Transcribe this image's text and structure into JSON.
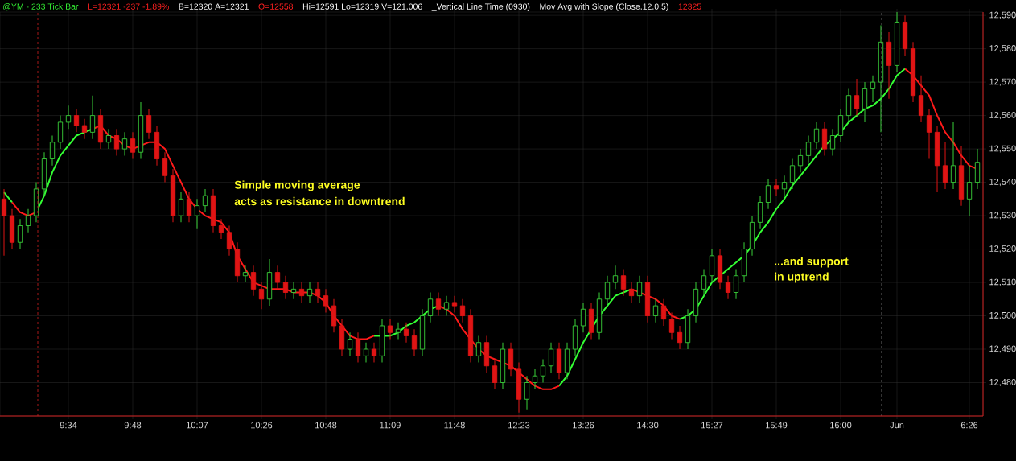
{
  "chart_data": {
    "type": "candlestick",
    "categories": [
      null,
      null,
      null,
      null,
      null,
      null,
      null,
      null,
      "9:34",
      null,
      null,
      null,
      null,
      null,
      null,
      null,
      "9:48",
      null,
      null,
      null,
      null,
      null,
      null,
      null,
      "10:07",
      null,
      null,
      null,
      null,
      null,
      null,
      null,
      "10:26",
      null,
      null,
      null,
      null,
      null,
      null,
      null,
      "10:48",
      null,
      null,
      null,
      null,
      null,
      null,
      null,
      "11:09",
      null,
      null,
      null,
      null,
      null,
      null,
      null,
      "11:48",
      null,
      null,
      null,
      null,
      null,
      null,
      null,
      "12:23",
      null,
      null,
      null,
      null,
      null,
      null,
      null,
      "13:26",
      null,
      null,
      null,
      null,
      null,
      null,
      null,
      "14:30",
      null,
      null,
      null,
      null,
      null,
      null,
      null,
      "15:27",
      null,
      null,
      null,
      null,
      null,
      null,
      null,
      "15:49",
      null,
      null,
      null,
      null,
      null,
      null,
      null,
      "16:00",
      null,
      null,
      null,
      null,
      null,
      null,
      "Jun",
      null,
      null,
      null,
      null,
      null,
      null,
      null,
      null,
      "6:26",
      null
    ],
    "ohlc": [
      [
        12535,
        12538,
        12518,
        12530
      ],
      [
        12530,
        12532,
        12520,
        12522
      ],
      [
        12522,
        12529,
        12520,
        12527
      ],
      [
        12527,
        12532,
        12525,
        12530
      ],
      [
        12530,
        12540,
        12528,
        12538
      ],
      [
        12538,
        12549,
        12536,
        12547
      ],
      [
        12547,
        12554,
        12545,
        12552
      ],
      [
        12552,
        12560,
        12550,
        12558
      ],
      [
        12558,
        12563,
        12556,
        12560
      ],
      [
        12560,
        12562,
        12555,
        12557
      ],
      [
        12557,
        12559,
        12553,
        12555
      ],
      [
        12555,
        12566,
        12553,
        12560
      ],
      [
        12560,
        12562,
        12550,
        12552
      ],
      [
        12552,
        12556,
        12550,
        12554
      ],
      [
        12554,
        12556,
        12548,
        12550
      ],
      [
        12550,
        12555,
        12548,
        12553
      ],
      [
        12553,
        12555,
        12547,
        12549
      ],
      [
        12549,
        12564,
        12547,
        12560
      ],
      [
        12560,
        12562,
        12553,
        12555
      ],
      [
        12555,
        12557,
        12545,
        12547
      ],
      [
        12547,
        12549,
        12540,
        12542
      ],
      [
        12542,
        12544,
        12528,
        12530
      ],
      [
        12530,
        12537,
        12528,
        12535
      ],
      [
        12535,
        12537,
        12528,
        12530
      ],
      [
        12530,
        12535,
        12526,
        12533
      ],
      [
        12533,
        12538,
        12531,
        12536
      ],
      [
        12536,
        12538,
        12525,
        12527
      ],
      [
        12527,
        12529,
        12523,
        12525
      ],
      [
        12525,
        12527,
        12518,
        12520
      ],
      [
        12520,
        12522,
        12510,
        12512
      ],
      [
        12512,
        12515,
        12510,
        12513
      ],
      [
        12513,
        12515,
        12506,
        12508
      ],
      [
        12508,
        12510,
        12502,
        12505
      ],
      [
        12505,
        12517,
        12503,
        12513
      ],
      [
        12513,
        12515,
        12508,
        12510
      ],
      [
        12510,
        12512,
        12505,
        12507
      ],
      [
        12507,
        12510,
        12505,
        12508
      ],
      [
        12508,
        12510,
        12504,
        12506
      ],
      [
        12506,
        12510,
        12504,
        12508
      ],
      [
        12508,
        12510,
        12504,
        12506
      ],
      [
        12506,
        12508,
        12501,
        12503
      ],
      [
        12503,
        12505,
        12495,
        12497
      ],
      [
        12497,
        12499,
        12488,
        12490
      ],
      [
        12490,
        12495,
        12488,
        12493
      ],
      [
        12493,
        12495,
        12486,
        12488
      ],
      [
        12488,
        12492,
        12486,
        12490
      ],
      [
        12490,
        12492,
        12486,
        12488
      ],
      [
        12488,
        12499,
        12486,
        12497
      ],
      [
        12497,
        12499,
        12493,
        12495
      ],
      [
        12495,
        12498,
        12493,
        12496
      ],
      [
        12496,
        12498,
        12492,
        12494
      ],
      [
        12494,
        12496,
        12488,
        12490
      ],
      [
        12490,
        12502,
        12488,
        12500
      ],
      [
        12500,
        12507,
        12498,
        12505
      ],
      [
        12505,
        12507,
        12500,
        12502
      ],
      [
        12502,
        12506,
        12500,
        12504
      ],
      [
        12504,
        12506,
        12501,
        12503
      ],
      [
        12503,
        12505,
        12498,
        12500
      ],
      [
        12500,
        12502,
        12486,
        12488
      ],
      [
        12488,
        12494,
        12486,
        12492
      ],
      [
        12492,
        12494,
        12483,
        12485
      ],
      [
        12485,
        12487,
        12478,
        12480
      ],
      [
        12480,
        12492,
        12478,
        12490
      ],
      [
        12490,
        12492,
        12482,
        12484
      ],
      [
        12484,
        12486,
        12471,
        12475
      ],
      [
        12475,
        12482,
        12472,
        12480
      ],
      [
        12480,
        12484,
        12478,
        12482
      ],
      [
        12482,
        12487,
        12480,
        12485
      ],
      [
        12485,
        12492,
        12483,
        12490
      ],
      [
        12490,
        12492,
        12481,
        12483
      ],
      [
        12483,
        12492,
        12481,
        12490
      ],
      [
        12490,
        12499,
        12488,
        12497
      ],
      [
        12497,
        12504,
        12495,
        12502
      ],
      [
        12502,
        12504,
        12493,
        12495
      ],
      [
        12495,
        12507,
        12493,
        12505
      ],
      [
        12505,
        12512,
        12503,
        12510
      ],
      [
        12510,
        12515,
        12508,
        12512
      ],
      [
        12512,
        12514,
        12506,
        12508
      ],
      [
        12508,
        12510,
        12504,
        12506
      ],
      [
        12506,
        12512,
        12504,
        12510
      ],
      [
        12510,
        12512,
        12498,
        12500
      ],
      [
        12500,
        12505,
        12498,
        12503
      ],
      [
        12503,
        12505,
        12497,
        12499
      ],
      [
        12499,
        12501,
        12493,
        12495
      ],
      [
        12495,
        12497,
        12490,
        12492
      ],
      [
        12492,
        12502,
        12490,
        12500
      ],
      [
        12500,
        12510,
        12498,
        12508
      ],
      [
        12508,
        12514,
        12506,
        12512
      ],
      [
        12512,
        12520,
        12510,
        12518
      ],
      [
        12518,
        12520,
        12508,
        12510
      ],
      [
        12510,
        12512,
        12505,
        12507
      ],
      [
        12507,
        12514,
        12505,
        12512
      ],
      [
        12512,
        12522,
        12510,
        12520
      ],
      [
        12520,
        12530,
        12518,
        12528
      ],
      [
        12528,
        12536,
        12526,
        12534
      ],
      [
        12534,
        12541,
        12532,
        12539
      ],
      [
        12539,
        12541,
        12536,
        12538
      ],
      [
        12538,
        12542,
        12536,
        12540
      ],
      [
        12540,
        12547,
        12538,
        12545
      ],
      [
        12545,
        12550,
        12543,
        12548
      ],
      [
        12548,
        12554,
        12546,
        12552
      ],
      [
        12552,
        12558,
        12550,
        12556
      ],
      [
        12556,
        12558,
        12548,
        12550
      ],
      [
        12550,
        12556,
        12548,
        12554
      ],
      [
        12554,
        12562,
        12552,
        12560
      ],
      [
        12560,
        12568,
        12558,
        12566
      ],
      [
        12566,
        12571,
        12560,
        12562
      ],
      [
        12562,
        12570,
        12558,
        12568
      ],
      [
        12568,
        12572,
        12564,
        12570
      ],
      [
        12570,
        12587,
        12555,
        12582
      ],
      [
        12582,
        12585,
        12565,
        12575
      ],
      [
        12575,
        12591,
        12573,
        12588
      ],
      [
        12588,
        12590,
        12578,
        12580
      ],
      [
        12580,
        12582,
        12564,
        12566
      ],
      [
        12566,
        12572,
        12558,
        12560
      ],
      [
        12560,
        12562,
        12547,
        12555
      ],
      [
        12555,
        12557,
        12537,
        12545
      ],
      [
        12545,
        12552,
        12538,
        12540
      ],
      [
        12540,
        12558,
        12538,
        12545
      ],
      [
        12545,
        12551,
        12533,
        12535
      ],
      [
        12535,
        12545,
        12530,
        12540
      ],
      [
        12540,
        12550,
        12538,
        12546
      ]
    ],
    "colors": [
      "#e01414",
      "#e01414",
      "#3ad13a",
      "#3ad13a",
      "#3ad13a",
      "#3ad13a",
      "#3ad13a",
      "#3ad13a",
      "#3ad13a",
      "#e01414",
      "#e01414",
      "#3ad13a",
      "#e01414",
      "#3ad13a",
      "#e01414",
      "#3ad13a",
      "#e01414",
      "#3ad13a",
      "#e01414",
      "#e01414",
      "#e01414",
      "#e01414",
      "#3ad13a",
      "#e01414",
      "#3ad13a",
      "#3ad13a",
      "#e01414",
      "#e01414",
      "#e01414",
      "#e01414",
      "#3ad13a",
      "#e01414",
      "#e01414",
      "#3ad13a",
      "#e01414",
      "#e01414",
      "#3ad13a",
      "#e01414",
      "#3ad13a",
      "#e01414",
      "#e01414",
      "#e01414",
      "#e01414",
      "#3ad13a",
      "#e01414",
      "#3ad13a",
      "#e01414",
      "#3ad13a",
      "#e01414",
      "#3ad13a",
      "#e01414",
      "#e01414",
      "#3ad13a",
      "#3ad13a",
      "#e01414",
      "#3ad13a",
      "#e01414",
      "#e01414",
      "#e01414",
      "#3ad13a",
      "#e01414",
      "#e01414",
      "#3ad13a",
      "#e01414",
      "#e01414",
      "#3ad13a",
      "#3ad13a",
      "#3ad13a",
      "#3ad13a",
      "#e01414",
      "#3ad13a",
      "#3ad13a",
      "#3ad13a",
      "#e01414",
      "#3ad13a",
      "#3ad13a",
      "#3ad13a",
      "#e01414",
      "#e01414",
      "#3ad13a",
      "#e01414",
      "#3ad13a",
      "#e01414",
      "#e01414",
      "#e01414",
      "#3ad13a",
      "#3ad13a",
      "#3ad13a",
      "#3ad13a",
      "#e01414",
      "#e01414",
      "#3ad13a",
      "#3ad13a",
      "#3ad13a",
      "#3ad13a",
      "#3ad13a",
      "#e01414",
      "#3ad13a",
      "#3ad13a",
      "#3ad13a",
      "#3ad13a",
      "#3ad13a",
      "#e01414",
      "#3ad13a",
      "#3ad13a",
      "#3ad13a",
      "#e01414",
      "#3ad13a",
      "#3ad13a",
      "#3ad13a",
      "#e01414",
      "#3ad13a",
      "#e01414",
      "#e01414",
      "#e01414",
      "#e01414",
      "#e01414",
      "#e01414",
      "#3ad13a",
      "#e01414",
      "#3ad13a",
      "#3ad13a"
    ],
    "series": [
      {
        "type": "line",
        "color": "#33ff33",
        "values": [
          12537,
          12534,
          null,
          null,
          12531,
          12536,
          12543,
          12548,
          12551,
          12554,
          12555,
          12556,
          null,
          null,
          null,
          null,
          null,
          null,
          null,
          null,
          null,
          null,
          null,
          null,
          null,
          null,
          null,
          null,
          null,
          null,
          null,
          null,
          null,
          null,
          null,
          null,
          null,
          null,
          null,
          null,
          null,
          null,
          null,
          null,
          null,
          null,
          12494,
          12494,
          12494,
          12495,
          12497,
          12498,
          12500,
          12502,
          12503,
          null,
          null,
          null,
          null,
          null,
          null,
          null,
          null,
          null,
          null,
          null,
          null,
          null,
          null,
          12479,
          12482,
          12487,
          12492,
          12496,
          12500,
          12503,
          12506,
          12507,
          12508,
          null,
          null,
          null,
          null,
          null,
          12499,
          12500,
          12502,
          12506,
          12510,
          12512,
          12514,
          12516,
          12518,
          12521,
          12525,
          12528,
          12532,
          12535,
          12539,
          12542,
          12545,
          12548,
          12551,
          12553,
          12555,
          12558,
          12560,
          12562,
          12563,
          12565,
          12568,
          12572,
          12574,
          null,
          null,
          null,
          null,
          null,
          null,
          null,
          null,
          null
        ]
      },
      {
        "type": "line",
        "color": "#ff1a1a",
        "values": [
          null,
          12534,
          12531,
          12530,
          12531,
          null,
          null,
          null,
          null,
          null,
          null,
          12556,
          12557,
          12554,
          12553,
          12551,
          12550,
          12551,
          12552,
          12552,
          12550,
          12545,
          12540,
          12535,
          12532,
          12530,
          12529,
          12528,
          12525,
          12518,
          12514,
          12510,
          12509,
          12508,
          12508,
          12508,
          12507,
          12507,
          12507,
          12506,
          12504,
          12500,
          12497,
          12494,
          12493,
          12493,
          12494,
          null,
          null,
          null,
          null,
          null,
          null,
          null,
          12503,
          12502,
          12500,
          12496,
          12493,
          12490,
          12488,
          12487,
          12486,
          12485,
          12483,
          12481,
          12479,
          12478,
          12478,
          12479,
          null,
          null,
          null,
          null,
          null,
          null,
          null,
          null,
          12508,
          12507,
          12506,
          12505,
          12503,
          12500,
          12499,
          null,
          null,
          null,
          null,
          null,
          null,
          null,
          null,
          null,
          null,
          null,
          null,
          null,
          null,
          null,
          null,
          null,
          null,
          null,
          null,
          null,
          null,
          null,
          null,
          null,
          null,
          null,
          12574,
          12572,
          12569,
          12566,
          12560,
          12555,
          12552,
          12548,
          12545,
          12544
        ]
      }
    ],
    "ylim": [
      12470,
      12591
    ],
    "yticks": [
      {
        "value": 12480,
        "label": "12,480"
      },
      {
        "value": 12490,
        "label": "12,490"
      },
      {
        "value": 12500,
        "label": "12,500"
      },
      {
        "value": 12510,
        "label": "12,510"
      },
      {
        "value": 12520,
        "label": "12,520"
      },
      {
        "value": 12530,
        "label": "12,530"
      },
      {
        "value": 12540,
        "label": "12,540"
      },
      {
        "value": 12550,
        "label": "12,550"
      },
      {
        "value": 12560,
        "label": "12,560"
      },
      {
        "value": 12570,
        "label": "12,570"
      },
      {
        "value": 12580,
        "label": "12,580"
      },
      {
        "value": 12590,
        "label": "12,590"
      }
    ],
    "grid": true,
    "annotations": [
      "@YM - 233 Tick Bar",
      "L=12321  -237  -1.89%",
      "B=12320  A=12321",
      "O=12558",
      "Hi=12591  Lo=12319  V=121,006",
      "_Vertical Line Time (0930)",
      "Mov Avg with Slope (Close,12,0,5)",
      "12325",
      "Simple moving average",
      "acts as resistance in downtrend",
      "...and support",
      "in uptrend"
    ]
  }
}
